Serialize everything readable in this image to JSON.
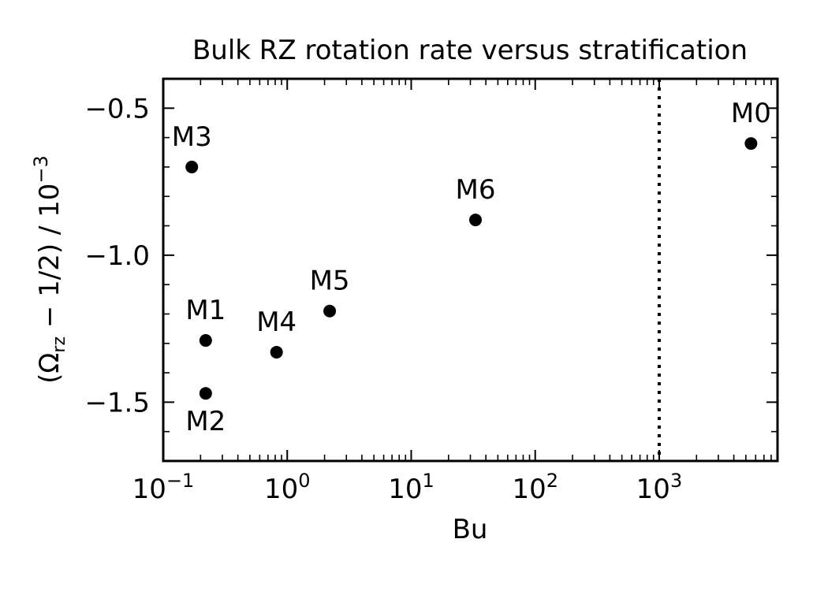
{
  "chart_data": {
    "type": "scatter",
    "title": "Bulk RZ rotation rate versus stratification",
    "xlabel": "Bu",
    "ylabel": {
      "prefix": "(Ω",
      "subscript": "rz",
      "suffix": " − 1/2) / 10",
      "superscript": "−3"
    },
    "xscale": "log",
    "xlim": [
      0.1,
      9000
    ],
    "ylim": [
      -1.7,
      -0.4
    ],
    "x_ticks": [
      {
        "value": 0.1,
        "base": "10",
        "exp": "−1"
      },
      {
        "value": 1,
        "base": "10",
        "exp": "0"
      },
      {
        "value": 10,
        "base": "10",
        "exp": "1"
      },
      {
        "value": 100,
        "base": "10",
        "exp": "2"
      },
      {
        "value": 1000,
        "base": "10",
        "exp": "3"
      }
    ],
    "y_ticks": [
      {
        "value": -0.5,
        "label": "−0.5"
      },
      {
        "value": -1.0,
        "label": "−1.0"
      },
      {
        "value": -1.5,
        "label": "−1.5"
      }
    ],
    "vline": {
      "x": 1000,
      "style": "dotted"
    },
    "points": [
      {
        "label": "M0",
        "x": 5500,
        "y": -0.62,
        "label_pos": "above"
      },
      {
        "label": "M1",
        "x": 0.22,
        "y": -1.29,
        "label_pos": "above"
      },
      {
        "label": "M2",
        "x": 0.22,
        "y": -1.47,
        "label_pos": "below"
      },
      {
        "label": "M3",
        "x": 0.17,
        "y": -0.7,
        "label_pos": "above"
      },
      {
        "label": "M4",
        "x": 0.82,
        "y": -1.33,
        "label_pos": "above"
      },
      {
        "label": "M5",
        "x": 2.2,
        "y": -1.19,
        "label_pos": "above"
      },
      {
        "label": "M6",
        "x": 33,
        "y": -0.88,
        "label_pos": "above"
      }
    ]
  }
}
